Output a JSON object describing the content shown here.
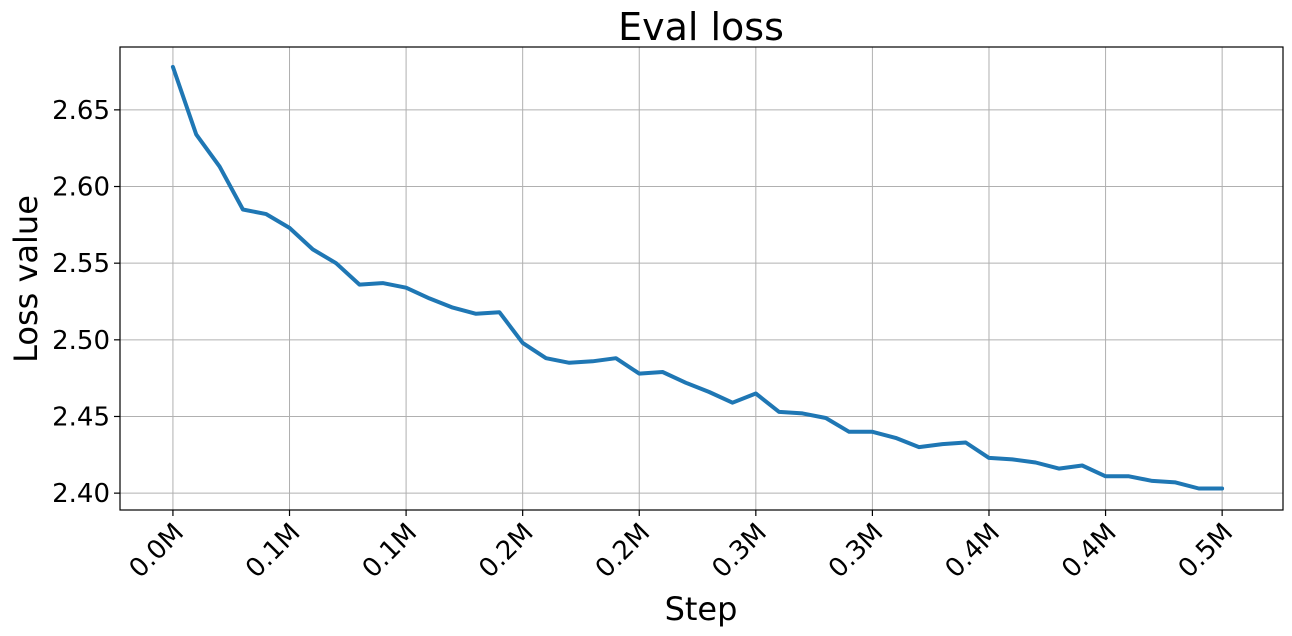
{
  "chart_data": {
    "type": "line",
    "title": "Eval loss",
    "xlabel": "Step",
    "ylabel": "Loss value",
    "grid": true,
    "legend": "none",
    "xlim": [
      -0.0227,
      0.4761
    ],
    "ylim": [
      2.389,
      2.691
    ],
    "x_ticks": [
      {
        "value": 0.0,
        "label": "0.0M"
      },
      {
        "value": 0.05,
        "label": "0.1M"
      },
      {
        "value": 0.1,
        "label": "0.1M"
      },
      {
        "value": 0.15,
        "label": "0.2M"
      },
      {
        "value": 0.2,
        "label": "0.2M"
      },
      {
        "value": 0.25,
        "label": "0.3M"
      },
      {
        "value": 0.3,
        "label": "0.3M"
      },
      {
        "value": 0.35,
        "label": "0.4M"
      },
      {
        "value": 0.4,
        "label": "0.4M"
      },
      {
        "value": 0.45,
        "label": "0.5M"
      }
    ],
    "y_ticks": [
      2.4,
      2.45,
      2.5,
      2.55,
      2.6,
      2.65
    ],
    "series": [
      {
        "color": "#1f77b4",
        "x": [
          0.0,
          0.01,
          0.02,
          0.03,
          0.04,
          0.05,
          0.06,
          0.07,
          0.08,
          0.09,
          0.1,
          0.11,
          0.12,
          0.13,
          0.14,
          0.15,
          0.16,
          0.17,
          0.18,
          0.19,
          0.2,
          0.21,
          0.22,
          0.23,
          0.24,
          0.25,
          0.26,
          0.27,
          0.28,
          0.29,
          0.3,
          0.31,
          0.32,
          0.33,
          0.34,
          0.35,
          0.36,
          0.37,
          0.38,
          0.39,
          0.4,
          0.41,
          0.42,
          0.43,
          0.44,
          0.45
        ],
        "y": [
          2.678,
          2.634,
          2.613,
          2.585,
          2.582,
          2.573,
          2.559,
          2.55,
          2.536,
          2.537,
          2.534,
          2.527,
          2.521,
          2.517,
          2.518,
          2.498,
          2.488,
          2.485,
          2.486,
          2.488,
          2.478,
          2.479,
          2.472,
          2.466,
          2.459,
          2.465,
          2.453,
          2.452,
          2.449,
          2.44,
          2.44,
          2.436,
          2.43,
          2.432,
          2.433,
          2.423,
          2.422,
          2.42,
          2.416,
          2.418,
          2.411,
          2.411,
          2.408,
          2.407,
          2.403,
          2.403
        ]
      }
    ]
  }
}
